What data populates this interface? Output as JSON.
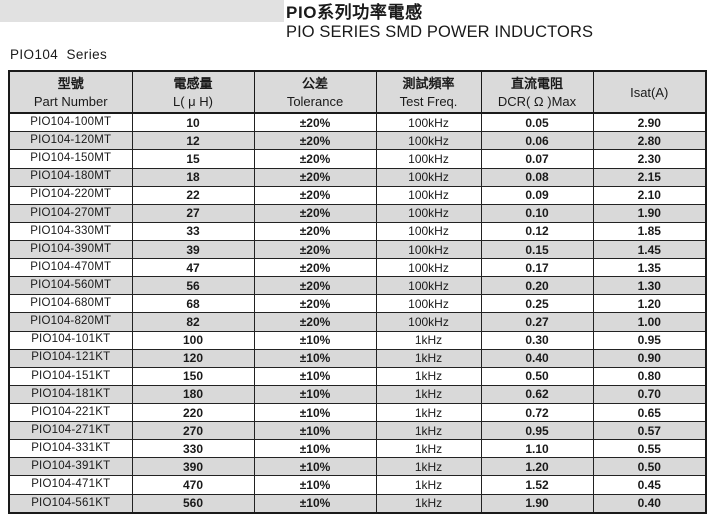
{
  "page_title": {
    "title_zh": "PIO系列功率電感",
    "title_en": "PIO SERIES SMD POWER INDUCTORS"
  },
  "series_label": "PIO104  Series",
  "colors": {
    "row_stripe": "#d9d9d9",
    "header_bg": "#dadada",
    "top_band": "#e1e1e1",
    "border": "#1a1a1a",
    "text": "#1a1a1a"
  },
  "table": {
    "columns": [
      {
        "line1": "型號",
        "line2": "Part Number"
      },
      {
        "line1": "電感量",
        "line2": "L( μ H)"
      },
      {
        "line1": "公差",
        "line2": "Tolerance"
      },
      {
        "line1": "測試頻率",
        "line2": "Test Freq."
      },
      {
        "line1": "直流電阻",
        "line2": "DCR( Ω )Max"
      },
      {
        "line1": "Isat(A)",
        "line2": ""
      }
    ],
    "rows": [
      [
        "PIO104-100MT",
        "10",
        "±20%",
        "100kHz",
        "0.05",
        "2.90"
      ],
      [
        "PIO104-120MT",
        "12",
        "±20%",
        "100kHz",
        "0.06",
        "2.80"
      ],
      [
        "PIO104-150MT",
        "15",
        "±20%",
        "100kHz",
        "0.07",
        "2.30"
      ],
      [
        "PIO104-180MT",
        "18",
        "±20%",
        "100kHz",
        "0.08",
        "2.15"
      ],
      [
        "PIO104-220MT",
        "22",
        "±20%",
        "100kHz",
        "0.09",
        "2.10"
      ],
      [
        "PIO104-270MT",
        "27",
        "±20%",
        "100kHz",
        "0.10",
        "1.90"
      ],
      [
        "PIO104-330MT",
        "33",
        "±20%",
        "100kHz",
        "0.12",
        "1.85"
      ],
      [
        "PIO104-390MT",
        "39",
        "±20%",
        "100kHz",
        "0.15",
        "1.45"
      ],
      [
        "PIO104-470MT",
        "47",
        "±20%",
        "100kHz",
        "0.17",
        "1.35"
      ],
      [
        "PIO104-560MT",
        "56",
        "±20%",
        "100kHz",
        "0.20",
        "1.30"
      ],
      [
        "PIO104-680MT",
        "68",
        "±20%",
        "100kHz",
        "0.25",
        "1.20"
      ],
      [
        "PIO104-820MT",
        "82",
        "±20%",
        "100kHz",
        "0.27",
        "1.00"
      ],
      [
        "PIO104-101KT",
        "100",
        "±10%",
        "1kHz",
        "0.30",
        "0.95"
      ],
      [
        "PIO104-121KT",
        "120",
        "±10%",
        "1kHz",
        "0.40",
        "0.90"
      ],
      [
        "PIO104-151KT",
        "150",
        "±10%",
        "1kHz",
        "0.50",
        "0.80"
      ],
      [
        "PIO104-181KT",
        "180",
        "±10%",
        "1kHz",
        "0.62",
        "0.70"
      ],
      [
        "PIO104-221KT",
        "220",
        "±10%",
        "1kHz",
        "0.72",
        "0.65"
      ],
      [
        "PIO104-271KT",
        "270",
        "±10%",
        "1kHz",
        "0.95",
        "0.57"
      ],
      [
        "PIO104-331KT",
        "330",
        "±10%",
        "1kHz",
        "1.10",
        "0.55"
      ],
      [
        "PIO104-391KT",
        "390",
        "±10%",
        "1kHz",
        "1.20",
        "0.50"
      ],
      [
        "PIO104-471KT",
        "470",
        "±10%",
        "1kHz",
        "1.52",
        "0.45"
      ],
      [
        "PIO104-561KT",
        "560",
        "±10%",
        "1kHz",
        "1.90",
        "0.40"
      ]
    ]
  }
}
